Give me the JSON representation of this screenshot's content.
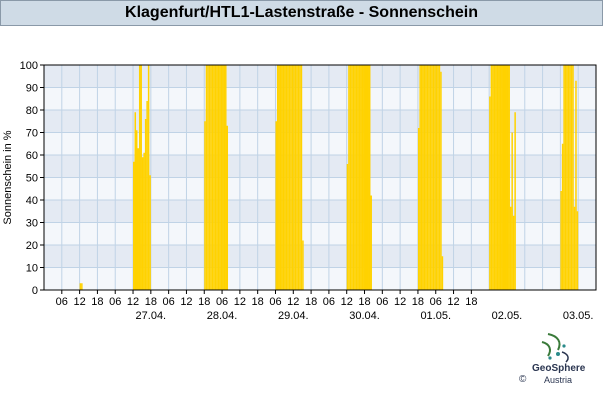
{
  "header": {
    "title": "Klagenfurt/HTL1-Lastenstraße - Sonnenschein"
  },
  "branding": {
    "name": "GeoSphere",
    "sub": "Austria",
    "copyright": "©"
  },
  "chart_data": {
    "type": "bar",
    "title": "Klagenfurt/HTL1-Lastenstraße - Sonnenschein",
    "ylabel": "Sonnenschein in %",
    "ylim": [
      0,
      100
    ],
    "yticks": [
      0,
      10,
      20,
      30,
      40,
      50,
      60,
      70,
      80,
      90,
      100
    ],
    "x_hour_ticks": [
      "06",
      "12",
      "18",
      "06",
      "12",
      "18",
      "06",
      "12",
      "18",
      "06",
      "12",
      "18",
      "06",
      "12",
      "18",
      "06",
      "12",
      "18",
      "06",
      "12",
      "18",
      "06",
      "12",
      "18"
    ],
    "x_day_labels": [
      "27.04.",
      "28.04.",
      "29.04.",
      "30.04.",
      "01.05.",
      "02.05.",
      "03.05."
    ],
    "bar_color": "#ffd200",
    "grid": true,
    "series": [
      {
        "values": [
          [
            12.0,
            3
          ],
          [
            12.5,
            3
          ],
          [
            30.0,
            57
          ],
          [
            30.5,
            79
          ],
          [
            31.0,
            71
          ],
          [
            31.5,
            63
          ],
          [
            32.0,
            100
          ],
          [
            32.5,
            100
          ],
          [
            33.0,
            59
          ],
          [
            33.5,
            61
          ],
          [
            34.0,
            76
          ],
          [
            34.5,
            84
          ],
          [
            35.0,
            100
          ],
          [
            35.5,
            51
          ],
          [
            54.0,
            75
          ],
          [
            54.5,
            100
          ],
          [
            55.0,
            100
          ],
          [
            55.5,
            100
          ],
          [
            56.0,
            100
          ],
          [
            56.5,
            100
          ],
          [
            57.0,
            100
          ],
          [
            57.5,
            100
          ],
          [
            58.0,
            100
          ],
          [
            58.5,
            100
          ],
          [
            59.0,
            100
          ],
          [
            59.5,
            100
          ],
          [
            60.0,
            100
          ],
          [
            60.5,
            100
          ],
          [
            61.0,
            100
          ],
          [
            61.5,
            73
          ],
          [
            78.0,
            75
          ],
          [
            78.5,
            100
          ],
          [
            79.0,
            100
          ],
          [
            79.5,
            100
          ],
          [
            80.0,
            100
          ],
          [
            80.5,
            100
          ],
          [
            81.0,
            100
          ],
          [
            81.5,
            100
          ],
          [
            82.0,
            100
          ],
          [
            82.5,
            100
          ],
          [
            83.0,
            100
          ],
          [
            83.5,
            100
          ],
          [
            84.0,
            100
          ],
          [
            84.5,
            100
          ],
          [
            85.0,
            100
          ],
          [
            85.5,
            100
          ],
          [
            86.0,
            100
          ],
          [
            86.5,
            100
          ],
          [
            87.0,
            22
          ],
          [
            102.0,
            56
          ],
          [
            102.5,
            100
          ],
          [
            103.0,
            100
          ],
          [
            103.5,
            100
          ],
          [
            104.0,
            100
          ],
          [
            104.5,
            100
          ],
          [
            105.0,
            100
          ],
          [
            105.5,
            100
          ],
          [
            106.0,
            100
          ],
          [
            106.5,
            100
          ],
          [
            107.0,
            100
          ],
          [
            107.5,
            100
          ],
          [
            108.0,
            100
          ],
          [
            108.5,
            100
          ],
          [
            109.0,
            100
          ],
          [
            109.5,
            100
          ],
          [
            110.0,
            42
          ],
          [
            126.0,
            72
          ],
          [
            126.5,
            100
          ],
          [
            127.0,
            100
          ],
          [
            127.5,
            100
          ],
          [
            128.0,
            100
          ],
          [
            128.5,
            100
          ],
          [
            129.0,
            100
          ],
          [
            129.5,
            100
          ],
          [
            130.0,
            100
          ],
          [
            130.5,
            100
          ],
          [
            131.0,
            100
          ],
          [
            131.5,
            100
          ],
          [
            132.0,
            100
          ],
          [
            132.5,
            100
          ],
          [
            133.0,
            100
          ],
          [
            133.5,
            97
          ],
          [
            134.0,
            15
          ],
          [
            150.0,
            86
          ],
          [
            150.5,
            100
          ],
          [
            151.0,
            100
          ],
          [
            151.5,
            100
          ],
          [
            152.0,
            100
          ],
          [
            152.5,
            100
          ],
          [
            153.0,
            100
          ],
          [
            153.5,
            100
          ],
          [
            154.0,
            100
          ],
          [
            154.5,
            100
          ],
          [
            155.0,
            100
          ],
          [
            155.5,
            100
          ],
          [
            156.0,
            100
          ],
          [
            156.5,
            100
          ],
          [
            157.0,
            37
          ],
          [
            157.5,
            70
          ],
          [
            158.0,
            33
          ],
          [
            158.5,
            79
          ],
          [
            174.0,
            44
          ],
          [
            174.5,
            65
          ],
          [
            175.0,
            100
          ],
          [
            175.5,
            100
          ],
          [
            176.0,
            100
          ],
          [
            176.5,
            100
          ],
          [
            177.0,
            100
          ],
          [
            177.5,
            100
          ],
          [
            178.0,
            100
          ],
          [
            178.5,
            37
          ],
          [
            179.0,
            93
          ],
          [
            179.5,
            35
          ]
        ]
      }
    ]
  }
}
